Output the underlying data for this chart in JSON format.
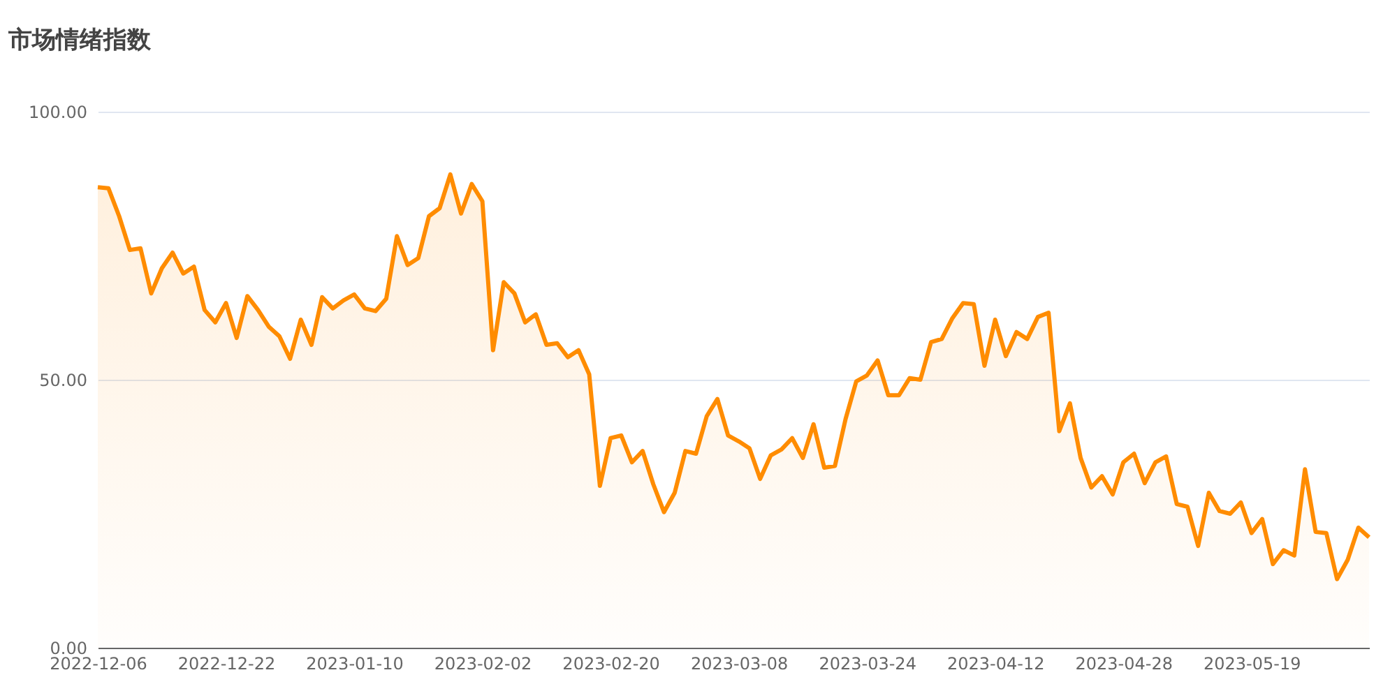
{
  "chart_data": {
    "type": "area",
    "title": "市场情绪指数",
    "categories": [
      "2022-12-06",
      null,
      null,
      null,
      null,
      null,
      null,
      null,
      null,
      null,
      null,
      null,
      "2022-12-22",
      null,
      null,
      null,
      null,
      null,
      null,
      null,
      null,
      null,
      null,
      null,
      "2023-01-10",
      null,
      null,
      null,
      null,
      null,
      null,
      null,
      null,
      null,
      null,
      null,
      "2023-02-02",
      null,
      null,
      null,
      null,
      null,
      null,
      null,
      null,
      null,
      null,
      null,
      "2023-02-20",
      null,
      null,
      null,
      null,
      null,
      null,
      null,
      null,
      null,
      null,
      null,
      "2023-03-08",
      null,
      null,
      null,
      null,
      null,
      null,
      null,
      null,
      null,
      null,
      null,
      "2023-03-24",
      null,
      null,
      null,
      null,
      null,
      null,
      null,
      null,
      null,
      null,
      null,
      "2023-04-12",
      null,
      null,
      null,
      null,
      null,
      null,
      null,
      null,
      null,
      null,
      null,
      "2023-04-28",
      null,
      null,
      null,
      null,
      null,
      null,
      null,
      null,
      null,
      null,
      null,
      "2023-05-19",
      null,
      null,
      null,
      null,
      null,
      null,
      null,
      null,
      null,
      null,
      null
    ],
    "series": [
      {
        "color": "#ff8c00",
        "values": [
          85.9,
          85.7,
          80.5,
          74.2,
          74.5,
          66.1,
          70.8,
          73.7,
          69.8,
          71.1,
          63.0,
          60.7,
          64.3,
          57.8,
          65.6,
          63.0,
          59.9,
          58.1,
          53.9,
          61.2,
          56.5,
          65.4,
          63.3,
          64.8,
          65.9,
          63.3,
          62.8,
          65.1,
          76.8,
          71.4,
          72.7,
          80.5,
          82.0,
          88.3,
          81.0,
          86.5,
          83.3,
          55.5,
          68.2,
          66.1,
          60.7,
          62.2,
          56.5,
          56.8,
          54.2,
          55.5,
          51.0,
          30.2,
          39.1,
          39.6,
          34.6,
          36.7,
          30.5,
          25.3,
          28.9,
          36.7,
          36.2,
          43.2,
          46.4,
          39.6,
          38.5,
          37.2,
          31.5,
          35.9,
          37.0,
          39.1,
          35.4,
          41.7,
          33.6,
          33.9,
          42.7,
          49.7,
          50.8,
          53.6,
          47.1,
          47.1,
          50.3,
          50.0,
          57.0,
          57.6,
          61.5,
          64.3,
          64.1,
          52.6,
          61.2,
          54.4,
          58.9,
          57.6,
          61.7,
          62.5,
          40.4,
          45.6,
          35.4,
          29.9,
          32.0,
          28.6,
          34.6,
          36.2,
          30.7,
          34.6,
          35.7,
          26.8,
          26.3,
          19.0,
          28.9,
          25.5,
          25.0,
          27.1,
          21.4,
          24.0,
          15.6,
          18.2,
          17.2,
          33.3,
          21.6,
          21.4,
          12.8,
          16.4,
          22.4,
          20.6
        ]
      }
    ],
    "ylim": [
      0,
      100
    ],
    "yticks": [
      {
        "value": 0,
        "label": "0.00"
      },
      {
        "value": 50,
        "label": "50.00"
      },
      {
        "value": 100,
        "label": "100.00"
      }
    ],
    "grid": "y"
  }
}
